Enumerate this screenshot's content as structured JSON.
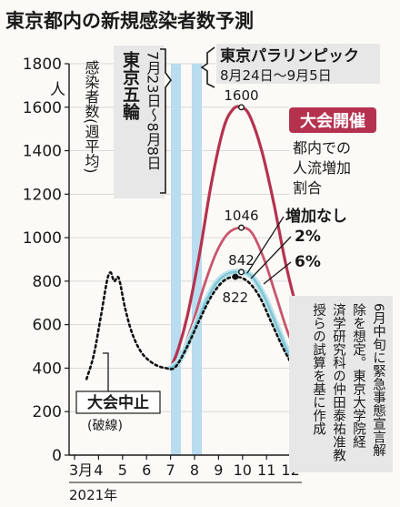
{
  "title": "東京都内の新規感染者数予測",
  "ylabel_unit": "人",
  "ylabel": "感染者数(週平均)",
  "olympics": {
    "name": "東京五輪",
    "period": "7月23日〜8月8日"
  },
  "paralympics": {
    "name": "東京パラリンピック",
    "period": "8月24日〜9月5日"
  },
  "legend_title": "大会開催",
  "legend_subtitle": "都内での人流増加割合",
  "legend_items": [
    "増加なし",
    "2%",
    "6%"
  ],
  "baseline_label": "大会中止",
  "baseline_note": "(破線)",
  "note": "6月中旬に緊急事態宣言解除を想定。東京大学院経済学研究科の仲田泰祐准教授らの試算を基に作成",
  "year_label": "2021年",
  "colors": {
    "scenario": "#b5324f",
    "baseline": "#1a1a1a",
    "highlight": "#b9dcef",
    "title_band": "#e7e7e7"
  },
  "chart_data": {
    "type": "line",
    "ylim": [
      0,
      1800
    ],
    "yticks": [
      0,
      200,
      400,
      600,
      800,
      1000,
      1200,
      1400,
      1600,
      1800
    ],
    "xlim": [
      3,
      13
    ],
    "month_ticks": [
      3,
      4,
      5,
      6,
      7,
      8,
      9,
      10,
      11,
      12
    ],
    "month_labels": [
      "3月",
      "4",
      "5",
      "6",
      "7",
      "8",
      "9",
      "10",
      "11",
      "12"
    ],
    "series": [
      {
        "name": "6%",
        "peak_label": "1600",
        "points": [
          [
            7.0,
            400
          ],
          [
            7.3,
            480
          ],
          [
            7.7,
            640
          ],
          [
            8.2,
            920
          ],
          [
            8.7,
            1250
          ],
          [
            9.2,
            1500
          ],
          [
            9.6,
            1590
          ],
          [
            9.95,
            1600
          ],
          [
            10.3,
            1560
          ],
          [
            10.8,
            1400
          ],
          [
            11.3,
            1160
          ],
          [
            11.8,
            880
          ],
          [
            12.3,
            660
          ],
          [
            12.6,
            570
          ]
        ]
      },
      {
        "name": "2%",
        "peak_label": "1046",
        "points": [
          [
            7.0,
            400
          ],
          [
            7.4,
            450
          ],
          [
            7.9,
            600
          ],
          [
            8.4,
            780
          ],
          [
            8.9,
            930
          ],
          [
            9.4,
            1020
          ],
          [
            9.95,
            1046
          ],
          [
            10.4,
            1020
          ],
          [
            10.9,
            900
          ],
          [
            11.4,
            730
          ],
          [
            11.9,
            560
          ],
          [
            12.4,
            440
          ],
          [
            12.6,
            400
          ]
        ]
      },
      {
        "name": "増加なし",
        "peak_label": "842",
        "points": [
          [
            7.0,
            400
          ],
          [
            7.4,
            440
          ],
          [
            7.9,
            560
          ],
          [
            8.4,
            690
          ],
          [
            8.9,
            790
          ],
          [
            9.4,
            835
          ],
          [
            9.95,
            842
          ],
          [
            10.4,
            820
          ],
          [
            10.9,
            730
          ],
          [
            11.4,
            600
          ],
          [
            11.9,
            470
          ],
          [
            12.4,
            360
          ],
          [
            12.6,
            320
          ]
        ]
      },
      {
        "name": "大会中止",
        "peak_label": "822",
        "points": [
          [
            3.5,
            350
          ],
          [
            3.8,
            460
          ],
          [
            4.1,
            640
          ],
          [
            4.35,
            800
          ],
          [
            4.5,
            840
          ],
          [
            4.65,
            800
          ],
          [
            4.8,
            820
          ],
          [
            4.9,
            790
          ],
          [
            5.1,
            680
          ],
          [
            5.4,
            560
          ],
          [
            5.8,
            470
          ],
          [
            6.3,
            420
          ],
          [
            6.8,
            400
          ],
          [
            7.2,
            405
          ],
          [
            7.7,
            500
          ],
          [
            8.2,
            620
          ],
          [
            8.7,
            730
          ],
          [
            9.2,
            800
          ],
          [
            9.7,
            820
          ],
          [
            10.2,
            800
          ],
          [
            10.7,
            730
          ],
          [
            11.2,
            610
          ],
          [
            11.7,
            490
          ],
          [
            12.2,
            390
          ],
          [
            12.6,
            320
          ]
        ]
      }
    ]
  }
}
